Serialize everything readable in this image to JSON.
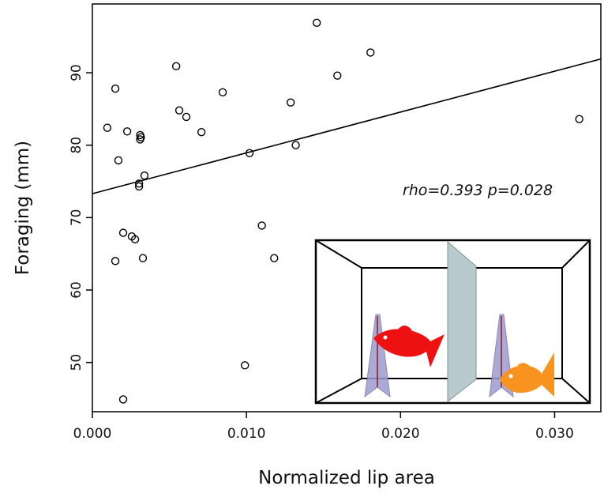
{
  "chart_data": {
    "type": "scatter",
    "x_label": "Normalized lip area",
    "y_label": "Foraging (mm)",
    "annotation": "rho=0.393 p=0.028",
    "x": [
      0.00097,
      0.00149,
      0.00169,
      0.00149,
      0.002,
      0.002,
      0.00226,
      0.00256,
      0.00277,
      0.00303,
      0.00303,
      0.0031,
      0.0031,
      0.00315,
      0.00328,
      0.00338,
      0.00544,
      0.00564,
      0.0061,
      0.00708,
      0.00846,
      0.0099,
      0.0102,
      0.011,
      0.0118,
      0.01287,
      0.0132,
      0.01456,
      0.0159,
      0.01805,
      0.0316
    ],
    "values": [
      82.4,
      87.8,
      77.9,
      64.0,
      67.9,
      44.9,
      81.9,
      67.4,
      67.0,
      74.3,
      74.7,
      81.4,
      80.8,
      81.1,
      64.4,
      75.8,
      90.9,
      84.8,
      83.9,
      81.8,
      87.3,
      49.6,
      78.9,
      68.9,
      64.4,
      85.9,
      80.0,
      96.9,
      89.6,
      92.8,
      83.6
    ],
    "trend": {
      "x": [
        0,
        0.033
      ],
      "values": [
        73.3,
        91.9
      ]
    },
    "xlim": [
      0,
      0.033
    ],
    "ylim": [
      43.2,
      99.5
    ],
    "xticks": [
      {
        "value": 0,
        "label": "0.000"
      },
      {
        "value": 0.01,
        "label": "0.010"
      },
      {
        "value": 0.02,
        "label": "0.020"
      },
      {
        "value": 0.03,
        "label": "0.030"
      }
    ],
    "yticks": [
      50,
      60,
      70,
      80,
      90
    ],
    "color": "#000000"
  }
}
